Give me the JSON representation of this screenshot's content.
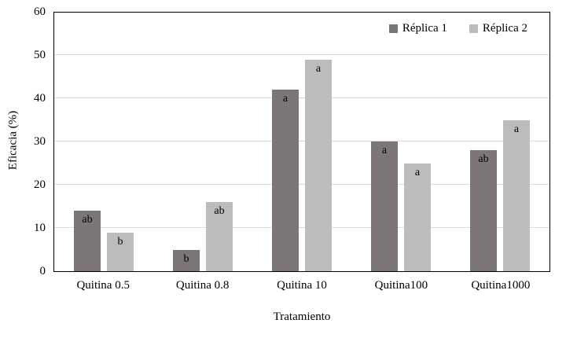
{
  "chart_data": {
    "type": "bar",
    "title": "",
    "categories": [
      "Quitina 0.5",
      "Quitina 0.8",
      "Quitina 10",
      "Quitina100",
      "Quitina1000"
    ],
    "series": [
      {
        "name": "Réplica 1",
        "color": "#7d7678",
        "values": [
          14,
          5,
          42,
          30,
          28
        ],
        "bar_labels": [
          "ab",
          "b",
          "a",
          "a",
          "ab"
        ]
      },
      {
        "name": "Réplica 2",
        "color": "#bdbbbc",
        "values": [
          9,
          16,
          49,
          25,
          35
        ],
        "bar_labels": [
          "b",
          "ab",
          "a",
          "a",
          "a"
        ]
      }
    ],
    "xlabel": "Tratamiento",
    "ylabel": "Eficacia (%)",
    "ylim": [
      0,
      60
    ],
    "yticks": [
      0,
      10,
      20,
      30,
      40,
      50,
      60
    ],
    "grid": "horizontal",
    "gridline_color": "#d9d9d9",
    "axis_color": "#000000",
    "legend_position": "top-right-inside"
  }
}
